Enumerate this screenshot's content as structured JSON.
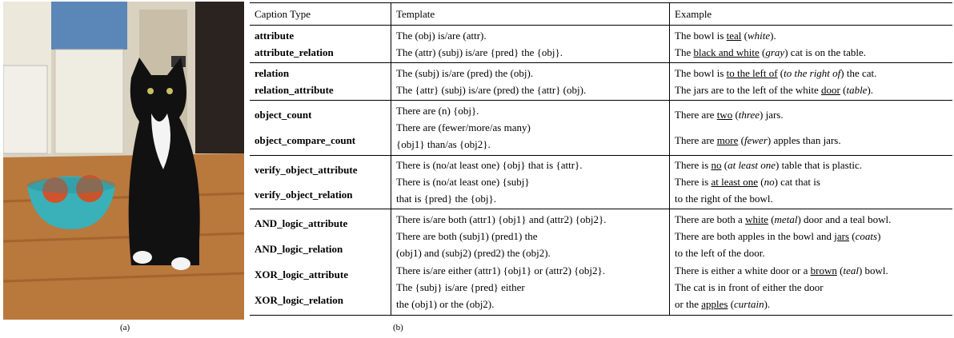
{
  "image_caption": "(a)",
  "table_caption": "(b)",
  "table": {
    "header": [
      "Caption Type",
      "Template",
      "Example"
    ],
    "groups": [
      {
        "types": [
          "attribute",
          "attribute_relation"
        ],
        "template": [
          "The (obj) is/are (attr).",
          "The (attr) (subj) is/are {pred} the {obj}."
        ],
        "example": [
          [
            {
              "text": "The bowl is "
            },
            {
              "text": "teal",
              "style": "underline"
            },
            {
              "text": " ("
            },
            {
              "text": "white",
              "style": "italic"
            },
            {
              "text": ")."
            }
          ],
          [
            {
              "text": "The "
            },
            {
              "text": "black and white",
              "style": "underline"
            },
            {
              "text": " ("
            },
            {
              "text": "gray",
              "style": "italic"
            },
            {
              "text": ") cat is on the table."
            }
          ]
        ]
      },
      {
        "types": [
          "relation",
          "relation_attribute"
        ],
        "template": [
          "The (subj) is/are (pred) the (obj).",
          "The {attr} (subj) is/are (pred) the {attr} (obj)."
        ],
        "example": [
          [
            {
              "text": "The bowl is "
            },
            {
              "text": "to the left of",
              "style": "underline"
            },
            {
              "text": " ("
            },
            {
              "text": "to the right of",
              "style": "italic"
            },
            {
              "text": ") the cat."
            }
          ],
          [
            {
              "text": "The jars are to the left of the white "
            },
            {
              "text": "door",
              "style": "underline"
            },
            {
              "text": " ("
            },
            {
              "text": "table",
              "style": "italic"
            },
            {
              "text": ")."
            }
          ]
        ]
      },
      {
        "types": [
          "object_count",
          "object_compare_count"
        ],
        "template": [
          "There are (n) {obj}.",
          "There are (fewer/more/as many)",
          "{obj1} than/as {obj2}."
        ],
        "example": [
          [
            {
              "text": "There are "
            },
            {
              "text": "two",
              "style": "underline"
            },
            {
              "text": " ("
            },
            {
              "text": "three",
              "style": "italic"
            },
            {
              "text": ") jars."
            }
          ],
          [
            {
              "text": "There are "
            },
            {
              "text": "more",
              "style": "underline"
            },
            {
              "text": " ("
            },
            {
              "text": "fewer",
              "style": "italic"
            },
            {
              "text": ") apples than jars."
            }
          ]
        ]
      },
      {
        "types": [
          "verify_object_attribute",
          "verify_object_relation"
        ],
        "template": [
          "There is (no/at least one) {obj} that is {attr}.",
          "There is (no/at least one) {subj}",
          "that is {pred} the {obj}."
        ],
        "example": [
          [
            {
              "text": "There is "
            },
            {
              "text": "no",
              "style": "underline"
            },
            {
              "text": " ("
            },
            {
              "text": "at least one",
              "style": "italic"
            },
            {
              "text": ") table that is plastic."
            }
          ],
          [
            {
              "text": "There is "
            },
            {
              "text": "at least one",
              "style": "underline"
            },
            {
              "text": " ("
            },
            {
              "text": "no",
              "style": "italic"
            },
            {
              "text": ") cat that is"
            }
          ],
          [
            {
              "text": "to the right of the bowl."
            }
          ]
        ]
      },
      {
        "types": [
          "AND_logic_attribute",
          "AND_logic_relation",
          "XOR_logic_attribute",
          "XOR_logic_relation"
        ],
        "template": [
          "There is/are both (attr1) {obj1} and (attr2) {obj2}.",
          "There are both (subj1) (pred1) the",
          "(obj1) and (subj2) (pred2) the (obj2).",
          "There is/are either (attr1) {obj1} or (attr2) {obj2}.",
          "The {subj} is/are {pred} either",
          "the (obj1) or the (obj2)."
        ],
        "example": [
          [
            {
              "text": "There are both a "
            },
            {
              "text": "white",
              "style": "underline"
            },
            {
              "text": " ("
            },
            {
              "text": "metal",
              "style": "italic"
            },
            {
              "text": ") door and a teal bowl."
            }
          ],
          [
            {
              "text": "There are both apples in the bowl and "
            },
            {
              "text": "jars",
              "style": "underline"
            },
            {
              "text": " ("
            },
            {
              "text": "coats",
              "style": "italic"
            },
            {
              "text": ")"
            }
          ],
          [
            {
              "text": "to the left of the door."
            }
          ],
          [
            {
              "text": "There is either a white door or a "
            },
            {
              "text": "brown",
              "style": "underline"
            },
            {
              "text": " ("
            },
            {
              "text": "teal",
              "style": "italic"
            },
            {
              "text": ") bowl."
            }
          ],
          [
            {
              "text": "The cat is in front of either the door"
            }
          ],
          [
            {
              "text": "or the "
            },
            {
              "text": "apples",
              "style": "underline"
            },
            {
              "text": " ("
            },
            {
              "text": "curtain",
              "style": "italic"
            },
            {
              "text": ")."
            }
          ]
        ]
      }
    ]
  }
}
